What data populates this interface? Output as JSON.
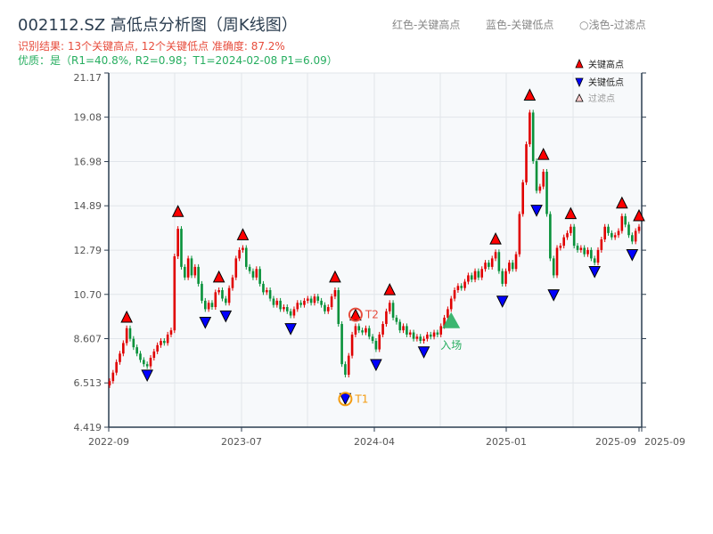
{
  "header": {
    "title": "002112.SZ 高低点分析图（周K线图）",
    "result": "识别结果: 13个关键高点, 12个关键低点  准确度: 87.2%",
    "quality": "优质：是（R1=40.8%, R2=0.98；T1=2024-02-08 P1=6.09）",
    "hint_red": "红色-关键高点",
    "hint_blue": "蓝色-关键低点",
    "hint_light": "○浅色-过滤点"
  },
  "colors": {
    "up": "#e00000",
    "down": "#08913a",
    "high_marker": "#ff0000",
    "low_marker": "#0000ff",
    "t1": "#f39c12",
    "t2": "#e74c3c",
    "entry": "#27ae60",
    "plot_bg": "#f7f9fb"
  },
  "chart_data": {
    "type": "candlestick",
    "frequency": "weekly",
    "x_range": [
      "2022-09",
      "2025-09"
    ],
    "x_ticks": [
      "2022-09",
      "2023-07",
      "2024-04",
      "2025-01",
      "2025-09",
      "2025-09"
    ],
    "ylim": [
      4.419,
      21.17
    ],
    "y_ticks": [
      "4.419",
      "6.513",
      "8.607",
      "10.70",
      "12.79",
      "14.89",
      "16.98",
      "19.08",
      "21.17"
    ],
    "grid": true,
    "closes": [
      6.6,
      7.0,
      7.5,
      7.9,
      8.4,
      9.1,
      8.6,
      8.2,
      7.9,
      7.6,
      7.4,
      7.3,
      7.7,
      8.0,
      8.3,
      8.5,
      8.4,
      8.8,
      9.0,
      12.5,
      13.8,
      12.0,
      11.5,
      12.4,
      11.6,
      12.0,
      11.2,
      10.4,
      10.0,
      10.3,
      10.1,
      10.8,
      10.9,
      10.5,
      10.3,
      11.0,
      11.5,
      12.4,
      12.8,
      12.9,
      12.0,
      11.8,
      11.5,
      11.9,
      11.2,
      10.8,
      10.9,
      10.5,
      10.2,
      10.4,
      10.0,
      10.1,
      9.9,
      9.7,
      10.0,
      10.3,
      10.2,
      10.4,
      10.5,
      10.3,
      10.6,
      10.4,
      10.2,
      9.9,
      10.1,
      10.6,
      10.9,
      9.3,
      7.4,
      6.9,
      7.8,
      8.8,
      9.2,
      9.0,
      8.9,
      9.1,
      8.7,
      8.5,
      8.1,
      8.8,
      9.3,
      9.9,
      10.3,
      9.6,
      9.4,
      9.0,
      9.2,
      8.8,
      8.9,
      8.6,
      8.7,
      8.5,
      8.6,
      8.8,
      8.7,
      8.9,
      8.8,
      9.2,
      9.6,
      10.0,
      10.5,
      10.9,
      11.1,
      11.0,
      11.3,
      11.6,
      11.4,
      11.8,
      11.5,
      11.9,
      12.2,
      12.0,
      12.4,
      12.7,
      11.8,
      11.2,
      11.8,
      12.2,
      11.9,
      12.6,
      14.5,
      16.0,
      17.8,
      19.3,
      17.0,
      15.6,
      15.8,
      16.5,
      14.5,
      12.4,
      11.6,
      12.9,
      13.0,
      13.4,
      13.6,
      13.9,
      13.0,
      12.8,
      12.9,
      12.6,
      12.8,
      12.4,
      12.2,
      12.8,
      13.3,
      13.9,
      13.6,
      13.4,
      13.5,
      13.7,
      14.4,
      14.0,
      13.5,
      13.2,
      13.7,
      13.9
    ],
    "key_highs": [
      {
        "bar": 5,
        "price": 9.3
      },
      {
        "bar": 20,
        "price": 14.3
      },
      {
        "bar": 32,
        "price": 11.2
      },
      {
        "bar": 39,
        "price": 13.2
      },
      {
        "bar": 66,
        "price": 11.2
      },
      {
        "bar": 72,
        "price": 9.4
      },
      {
        "bar": 82,
        "price": 10.6
      },
      {
        "bar": 113,
        "price": 13.0
      },
      {
        "bar": 123,
        "price": 19.8
      },
      {
        "bar": 127,
        "price": 17.0
      },
      {
        "bar": 135,
        "price": 14.2
      },
      {
        "bar": 150,
        "price": 14.7
      },
      {
        "bar": 155,
        "price": 14.1
      }
    ],
    "key_lows": [
      {
        "bar": 11,
        "price": 7.2
      },
      {
        "bar": 28,
        "price": 9.7
      },
      {
        "bar": 34,
        "price": 10.0
      },
      {
        "bar": 53,
        "price": 9.4
      },
      {
        "bar": 69,
        "price": 6.09
      },
      {
        "bar": 78,
        "price": 7.7
      },
      {
        "bar": 92,
        "price": 8.3
      },
      {
        "bar": 115,
        "price": 10.7
      },
      {
        "bar": 125,
        "price": 15.0
      },
      {
        "bar": 130,
        "price": 11.0
      },
      {
        "bar": 142,
        "price": 12.1
      },
      {
        "bar": 153,
        "price": 12.9
      }
    ],
    "annotations": [
      {
        "label": "T1",
        "bar": 69,
        "price": 6.09,
        "kind": "low"
      },
      {
        "label": "T2",
        "bar": 72,
        "price": 9.4,
        "kind": "high"
      },
      {
        "label": "入场",
        "bar": 100,
        "price": 9.1,
        "kind": "entry"
      }
    ],
    "legend": {
      "placement": "top-right",
      "entries": [
        "关键高点",
        "关键低点",
        "过滤点"
      ]
    }
  }
}
